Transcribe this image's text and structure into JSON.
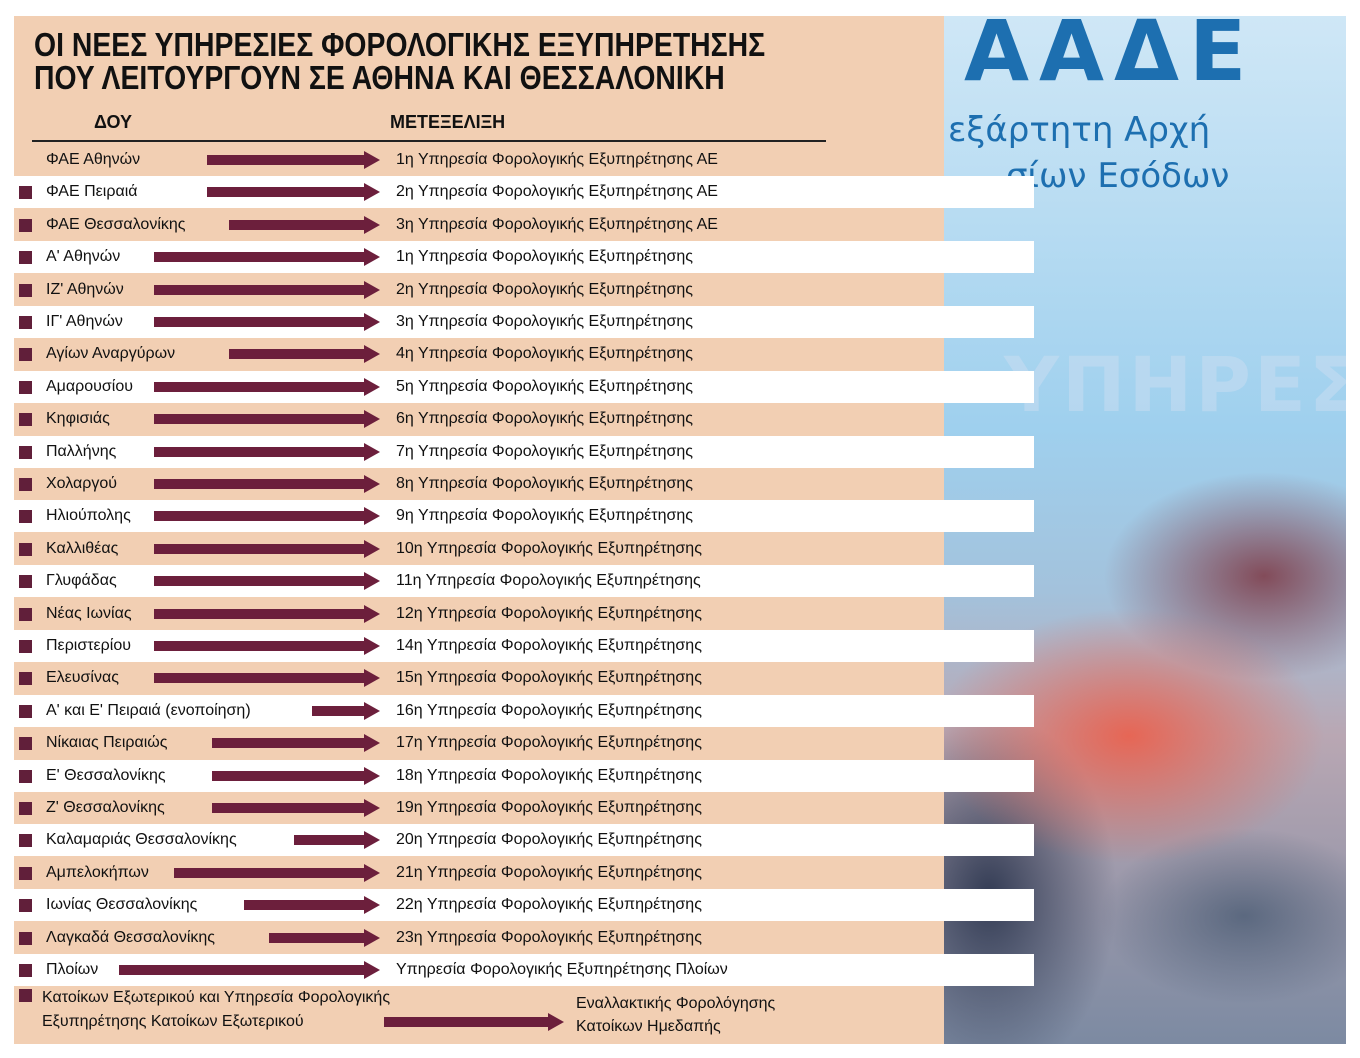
{
  "title_line1": "ΟΙ ΝΕΕΣ ΥΠΗΡΕΣΙΕΣ ΦΟΡΟΛΟΓΙΚΗΣ ΕΞΥΠΗΡΕΤΗΣΗΣ",
  "title_line2": "ΠΟΥ ΛΕΙΤΟΥΡΓΟΥΝ ΣΕ ΑΘΗΝΑ ΚΑΙ ΘΕΣΣΑΛΟΝΙΚΗ",
  "col_dou": "ΔΟΥ",
  "col_metexelixi": "ΜΕΤΕΞΕΛΙΞΗ",
  "photo_text": {
    "line1": "ΑΑΔΕ",
    "line2": "εξάρτητη Αρχή",
    "line3": "σίων Εσόδων",
    "line4": "ΥΠΗΡΕΣ"
  },
  "rows": [
    {
      "from": "ΦΑΕ Αθηνών",
      "to": "1η Υπηρεσία Φορολογικής Εξυπηρέτησης ΑΕ"
    },
    {
      "from": "ΦΑΕ Πειραιά",
      "to": "2η Υπηρεσία Φορολογικής Εξυπηρέτησης ΑΕ"
    },
    {
      "from": "ΦΑΕ Θεσσαλονίκης",
      "to": "3η Υπηρεσία Φορολογικής Εξυπηρέτησης ΑΕ"
    },
    {
      "from": "Α' Αθηνών",
      "to": "1η Υπηρεσία Φορολογικής Εξυπηρέτησης"
    },
    {
      "from": "ΙΖ' Αθηνών",
      "to": "2η Υπηρεσία Φορολογικής Εξυπηρέτησης"
    },
    {
      "from": "ΙΓ' Αθηνών",
      "to": "3η Υπηρεσία Φορολογικής Εξυπηρέτησης"
    },
    {
      "from": "Αγίων Αναργύρων",
      "to": "4η Υπηρεσία Φορολογικής Εξυπηρέτησης"
    },
    {
      "from": "Αμαρουσίου",
      "to": "5η Υπηρεσία Φορολογικής Εξυπηρέτησης"
    },
    {
      "from": "Κηφισιάς",
      "to": "6η Υπηρεσία Φορολογικής Εξυπηρέτησης"
    },
    {
      "from": "Παλλήνης",
      "to": "7η Υπηρεσία Φορολογικής Εξυπηρέτησης"
    },
    {
      "from": "Χολαργού",
      "to": "8η Υπηρεσία Φορολογικής Εξυπηρέτησης"
    },
    {
      "from": "Ηλιούπολης",
      "to": "9η Υπηρεσία Φορολογικής Εξυπηρέτησης"
    },
    {
      "from": "Καλλιθέας",
      "to": "10η Υπηρεσία Φορολογικής Εξυπηρέτησης"
    },
    {
      "from": "Γλυφάδας",
      "to": "11η Υπηρεσία Φορολογικής Εξυπηρέτησης"
    },
    {
      "from": "Νέας Ιωνίας",
      "to": "12η Υπηρεσία Φορολογικής Εξυπηρέτησης"
    },
    {
      "from": "Περιστερίου",
      "to": "14η Υπηρεσία Φορολογικής Εξυπηρέτησης"
    },
    {
      "from": "Ελευσίνας",
      "to": "15η Υπηρεσία Φορολογικής Εξυπηρέτησης"
    },
    {
      "from": "Α' και Ε' Πειραιά (ενοποίηση)",
      "to": "16η Υπηρεσία Φορολογικής Εξυπηρέτησης"
    },
    {
      "from": "Νίκαιας Πειραιώς",
      "to": "17η Υπηρεσία Φορολογικής Εξυπηρέτησης"
    },
    {
      "from": "Ε' Θεσσαλονίκης",
      "to": "18η Υπηρεσία Φορολογικής Εξυπηρέτησης"
    },
    {
      "from": "Ζ' Θεσσαλονίκης",
      "to": "19η Υπηρεσία Φορολογικής Εξυπηρέτησης"
    },
    {
      "from": "Καλαμαριάς Θεσσαλονίκης",
      "to": "20η Υπηρεσία Φορολογικής Εξυπηρέτησης"
    },
    {
      "from": "Αμπελοκήπων",
      "to": "21η Υπηρεσία Φορολογικής Εξυπηρέτησης"
    },
    {
      "from": "Ιωνίας Θεσσαλονίκης",
      "to": "22η Υπηρεσία Φορολογικής Εξυπηρέτησης"
    },
    {
      "from": "Λαγκαδά Θεσσαλονίκης",
      "to": "23η Υπηρεσία Φορολογικής Εξυπηρέτησης"
    },
    {
      "from": "Πλοίων",
      "to": "Υπηρεσία Φορολογικής Εξυπηρέτησης Πλοίων"
    }
  ],
  "footer": {
    "from_line1": "Κατοίκων Εξωτερικού και Υπηρεσία Φορολογικής",
    "from_line2": "Εξυπηρέτησης Κατοίκων Εξωτερικού",
    "to_line1": "Εναλλακτικής Φορολόγησης",
    "to_line2": "Κατοίκων Ημεδαπής"
  },
  "colors": {
    "background": "#f2cfb3",
    "arrow": "#6c1f3c",
    "bullet": "#611f3a",
    "text": "#111111"
  }
}
